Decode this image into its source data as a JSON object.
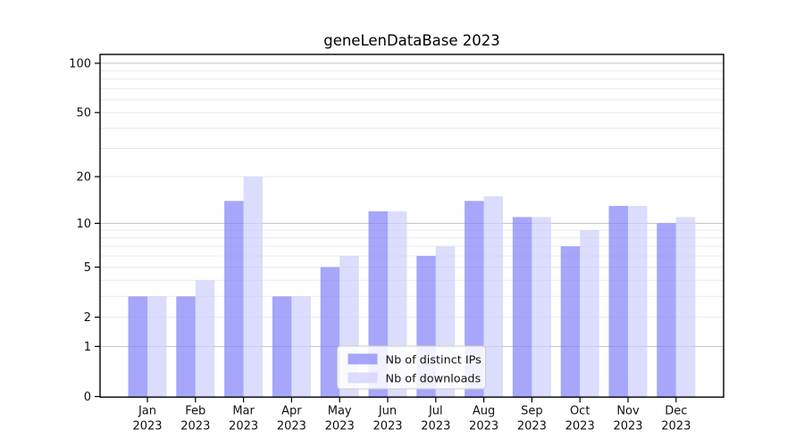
{
  "chart_data": {
    "type": "bar",
    "title": "geneLenDataBase 2023",
    "categories": [
      "Jan",
      "Feb",
      "Mar",
      "Apr",
      "May",
      "Jun",
      "Jul",
      "Aug",
      "Sep",
      "Oct",
      "Nov",
      "Dec"
    ],
    "x_tick_year": "2023",
    "series": [
      {
        "name": "Nb of distinct IPs",
        "color": "#8484fa",
        "alpha": 0.72,
        "values": [
          3,
          3,
          14,
          3,
          5,
          12,
          6,
          14,
          11,
          7,
          13,
          10
        ]
      },
      {
        "name": "Nb of downloads",
        "color": "#cecefc",
        "alpha": 0.72,
        "values": [
          3,
          4,
          20,
          3,
          6,
          12,
          7,
          15,
          11,
          9,
          13,
          11
        ]
      }
    ],
    "xlabel": "",
    "ylabel": "",
    "yaxis": {
      "scale": "log10(1+y)",
      "tick_values": [
        0,
        1,
        2,
        5,
        10,
        20,
        50,
        100
      ],
      "tick_labels": [
        "0",
        "1",
        "2",
        "5",
        "10",
        "20",
        "50",
        "100"
      ],
      "major_gridlines": [
        1,
        10,
        100
      ],
      "minor_gridlines": [
        2,
        3,
        4,
        5,
        6,
        7,
        8,
        9,
        20,
        30,
        40,
        50,
        60,
        70,
        80,
        90
      ],
      "ylim": [
        0,
        112
      ]
    },
    "legend": {
      "position": "lower center",
      "entries": [
        "Nb of distinct IPs",
        "Nb of downloads"
      ]
    },
    "grid": true,
    "colors": {
      "major_grid": "#c3c3c3",
      "minor_grid": "#e9e9e9",
      "spine": "#000000",
      "text": "#111111",
      "legend_bg": "#ffffff",
      "legend_border": "#cccccc"
    }
  }
}
